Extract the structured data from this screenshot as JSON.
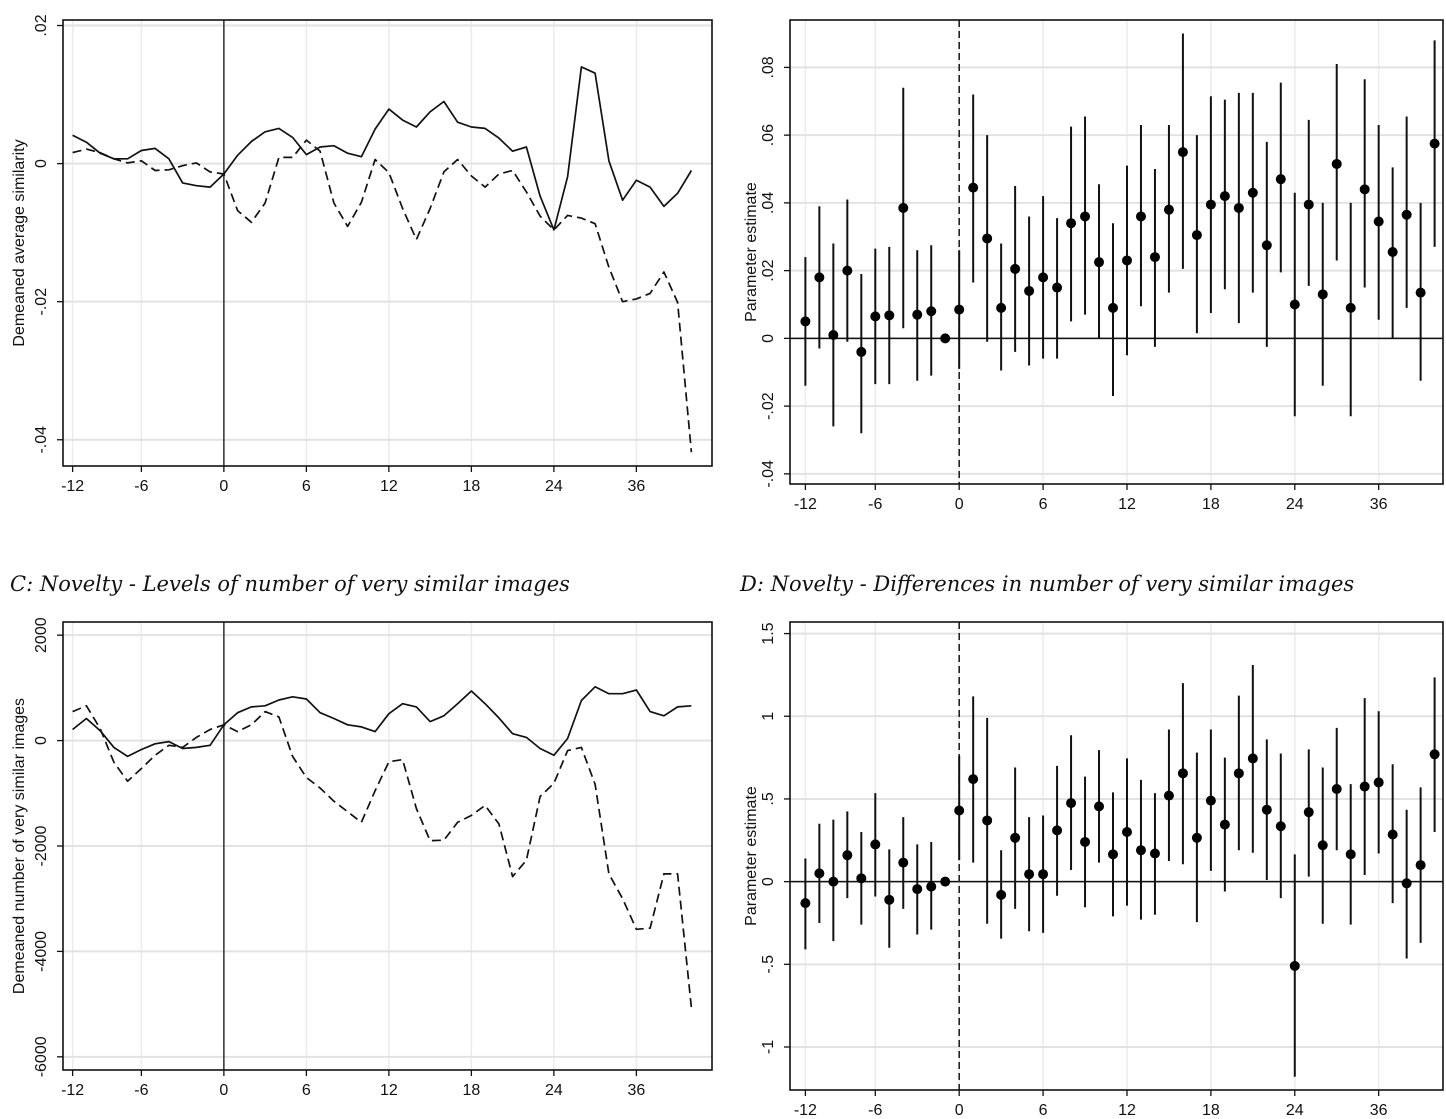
{
  "titles": {
    "c": "C: Novelty - Levels of number of very similar images",
    "d": "D: Novelty - Differences in number of very similar images"
  },
  "chart_data": [
    {
      "id": "A",
      "type": "line",
      "title": "",
      "xlabel": "",
      "ylabel": "Demeaned average similarity",
      "xlim": [
        -11.7,
        35.5
      ],
      "ylim": [
        -0.0438,
        0.0208
      ],
      "grid": true,
      "legend": "none",
      "x_ticks": [
        -11,
        -6,
        0,
        6,
        12,
        18,
        24,
        30
      ],
      "x_tick_labels": [
        "-12",
        "-6",
        "0",
        "6",
        "12",
        "18",
        "24",
        "36"
      ],
      "y_ticks": [
        0.02,
        0,
        -0.02,
        -0.04
      ],
      "y_tick_labels": [
        ".02",
        "0",
        "-.02",
        "-.04"
      ],
      "reference_line_x": 0,
      "x": [
        -11,
        -10,
        -9,
        -8,
        -7,
        -6,
        -5,
        -4,
        -3,
        -2,
        -1,
        0,
        1,
        2,
        3,
        4,
        5,
        6,
        7,
        8,
        9,
        10,
        11,
        12,
        13,
        14,
        15,
        16,
        17,
        18,
        19,
        20,
        21,
        22,
        23,
        24,
        25,
        26,
        27,
        28,
        29,
        30,
        31,
        32,
        33,
        34
      ],
      "series": [
        {
          "name": "solid",
          "style": "solid",
          "values": [
            0.0041,
            0.0031,
            0.0015,
            0.0007,
            0.0007,
            0.0019,
            0.0022,
            0.0007,
            -0.0028,
            -0.0032,
            -0.0034,
            -0.0015,
            0.0012,
            0.0032,
            0.0046,
            0.0051,
            0.0038,
            0.0013,
            0.0024,
            0.0026,
            0.0015,
            0.001,
            0.005,
            0.0079,
            0.0063,
            0.0053,
            0.0075,
            0.009,
            0.006,
            0.0053,
            0.0051,
            0.0037,
            0.0018,
            0.0024,
            -0.0047,
            -0.0096,
            -0.0019,
            0.014,
            0.0131,
            0.0004,
            -0.0053,
            -0.0024,
            -0.0034,
            -0.0062,
            -0.0043,
            -0.001
          ]
        },
        {
          "name": "dashed",
          "style": "dashed",
          "values": [
            0.0016,
            0.0021,
            0.0016,
            0.0007,
            0.0001,
            0.0004,
            -0.001,
            -0.0009,
            -0.0003,
            0.0001,
            -0.0012,
            -0.0015,
            -0.0068,
            -0.0085,
            -0.0057,
            0.0009,
            0.0009,
            0.0034,
            0.0018,
            -0.0057,
            -0.0091,
            -0.0056,
            0.0006,
            -0.0013,
            -0.0065,
            -0.011,
            -0.0065,
            -0.0012,
            0.0006,
            -0.0018,
            -0.0034,
            -0.0015,
            -0.001,
            -0.0041,
            -0.0076,
            -0.0096,
            -0.0075,
            -0.0079,
            -0.0087,
            -0.015,
            -0.02,
            -0.0196,
            -0.0188,
            -0.0157,
            -0.0201,
            -0.0418
          ]
        }
      ]
    },
    {
      "id": "B",
      "type": "scatter",
      "title": "",
      "xlabel": "",
      "ylabel": "Parameter estimate",
      "xlim": [
        -12.1,
        34.6
      ],
      "ylim": [
        -0.043,
        0.094
      ],
      "grid": true,
      "legend": "none",
      "x_ticks": [
        -11,
        -6,
        0,
        6,
        12,
        18,
        24,
        30
      ],
      "x_tick_labels": [
        "-12",
        "-6",
        "0",
        "6",
        "12",
        "18",
        "24",
        "36"
      ],
      "y_ticks": [
        0.08,
        0.06,
        0.04,
        0.02,
        0,
        -0.02,
        -0.04
      ],
      "y_tick_labels": [
        ".08",
        ".06",
        ".04",
        ".02",
        "0",
        "-.02",
        "-.04"
      ],
      "reference_line_x": 0,
      "reference_line_y": 0,
      "x": [
        -11,
        -10,
        -9,
        -8,
        -7,
        -6,
        -5,
        -4,
        -3,
        -2,
        -1,
        0,
        1,
        2,
        3,
        4,
        5,
        6,
        7,
        8,
        9,
        10,
        11,
        12,
        13,
        14,
        15,
        16,
        17,
        18,
        19,
        20,
        21,
        22,
        23,
        24,
        25,
        26,
        27,
        28,
        29,
        30,
        31,
        32,
        33,
        34
      ],
      "estimate": [
        0.005,
        0.018,
        0.001,
        0.02,
        -0.004,
        0.0065,
        0.0068,
        0.0385,
        0.007,
        0.008,
        0,
        0.0085,
        0.0445,
        0.0295,
        0.009,
        0.0205,
        0.014,
        0.018,
        0.015,
        0.034,
        0.036,
        0.0225,
        0.009,
        0.023,
        0.036,
        0.024,
        0.038,
        0.055,
        0.0305,
        0.0395,
        0.042,
        0.0385,
        0.043,
        0.0275,
        0.047,
        0.01,
        0.0395,
        0.013,
        0.0515,
        0.009,
        0.044,
        0.0345,
        0.0255,
        0.0365,
        0.0135,
        0.0575
      ],
      "ci_low": [
        -0.014,
        -0.003,
        -0.026,
        -0.001,
        -0.028,
        -0.0135,
        -0.0135,
        0.003,
        -0.0125,
        -0.011,
        0,
        -0.009,
        0.0165,
        -0.001,
        -0.0095,
        -0.004,
        -0.008,
        -0.006,
        -0.006,
        0.005,
        0.007,
        0,
        -0.017,
        -0.005,
        0.0095,
        -0.0025,
        0.0135,
        0.0205,
        0.0015,
        0.0075,
        0.0145,
        0.0045,
        0.0135,
        -0.0025,
        0.0195,
        -0.023,
        0.0155,
        -0.014,
        0.023,
        -0.023,
        0.015,
        0.0055,
        0,
        0.009,
        -0.0125,
        0.027
      ],
      "ci_high": [
        0.024,
        0.039,
        0.028,
        0.041,
        0.019,
        0.0265,
        0.027,
        0.074,
        0.026,
        0.0275,
        0,
        0.026,
        0.072,
        0.06,
        0.028,
        0.045,
        0.036,
        0.042,
        0.0355,
        0.0625,
        0.0655,
        0.0455,
        0.034,
        0.051,
        0.063,
        0.05,
        0.063,
        0.09,
        0.06,
        0.0715,
        0.0705,
        0.0725,
        0.0725,
        0.058,
        0.0755,
        0.043,
        0.0645,
        0.04,
        0.081,
        0.04,
        0.0765,
        0.063,
        0.0505,
        0.0655,
        0.04,
        0.088
      ]
    },
    {
      "id": "C",
      "type": "line",
      "title": "C: Novelty - Levels of number of very similar images",
      "xlabel": "",
      "ylabel": "Demeaned number of very similar images",
      "xlim": [
        -11.7,
        35.5
      ],
      "ylim": [
        -6250,
        2250
      ],
      "grid": true,
      "legend": "none",
      "x_ticks": [
        -11,
        -6,
        0,
        6,
        12,
        18,
        24,
        30
      ],
      "x_tick_labels": [
        "-12",
        "-6",
        "0",
        "6",
        "12",
        "18",
        "24",
        "36"
      ],
      "y_ticks": [
        2000,
        0,
        -2000,
        -4000,
        -6000
      ],
      "y_tick_labels": [
        "2000",
        "0",
        "-2000",
        "-4000",
        "-6000"
      ],
      "reference_line_x": 0,
      "x": [
        -11,
        -10,
        -9,
        -8,
        -7,
        -6,
        -5,
        -4,
        -3,
        -2,
        -1,
        0,
        1,
        2,
        3,
        4,
        5,
        6,
        7,
        8,
        9,
        10,
        11,
        12,
        13,
        14,
        15,
        16,
        17,
        18,
        19,
        20,
        21,
        22,
        23,
        24,
        25,
        26,
        27,
        28,
        29,
        30,
        31,
        32,
        33,
        34
      ],
      "series": [
        {
          "name": "solid",
          "style": "solid",
          "values": [
            210,
            420,
            190,
            -130,
            -300,
            -170,
            -60,
            -20,
            -150,
            -130,
            -90,
            300,
            530,
            640,
            660,
            770,
            830,
            790,
            530,
            420,
            300,
            260,
            170,
            510,
            700,
            640,
            360,
            470,
            700,
            940,
            700,
            430,
            130,
            60,
            -150,
            -280,
            40,
            760,
            1020,
            890,
            890,
            960,
            550,
            470,
            640,
            660
          ]
        },
        {
          "name": "dashed",
          "style": "dashed",
          "values": [
            550,
            660,
            230,
            -410,
            -770,
            -530,
            -280,
            -90,
            -130,
            60,
            210,
            300,
            170,
            300,
            550,
            450,
            -300,
            -700,
            -900,
            -1150,
            -1350,
            -1550,
            -950,
            -400,
            -360,
            -1290,
            -1900,
            -1890,
            -1550,
            -1420,
            -1230,
            -1580,
            -2580,
            -2270,
            -1060,
            -810,
            -190,
            -130,
            -830,
            -2530,
            -3000,
            -3580,
            -3560,
            -2530,
            -2530,
            -5070
          ]
        }
      ]
    },
    {
      "id": "D",
      "type": "scatter",
      "title": "D: Novelty - Differences in number of very similar images",
      "xlabel": "",
      "ylabel": "Parameter estimate",
      "xlim": [
        -12.1,
        34.6
      ],
      "ylim": [
        -1.26,
        1.57
      ],
      "grid": true,
      "legend": "none",
      "x_ticks": [
        -11,
        -6,
        0,
        6,
        12,
        18,
        24,
        30
      ],
      "x_tick_labels": [
        "-12",
        "-6",
        "0",
        "6",
        "12",
        "18",
        "24",
        "36"
      ],
      "y_ticks": [
        1.5,
        1,
        0.5,
        0,
        -0.5,
        -1
      ],
      "y_tick_labels": [
        "1.5",
        "1",
        ".5",
        "0",
        "-.5",
        "-1"
      ],
      "reference_line_x": 0,
      "reference_line_y": 0,
      "x": [
        -11,
        -10,
        -9,
        -8,
        -7,
        -6,
        -5,
        -4,
        -3,
        -2,
        -1,
        0,
        1,
        2,
        3,
        4,
        5,
        6,
        7,
        8,
        9,
        10,
        11,
        12,
        13,
        14,
        15,
        16,
        17,
        18,
        19,
        20,
        21,
        22,
        23,
        24,
        25,
        26,
        27,
        28,
        29,
        30,
        31,
        32,
        33,
        34
      ],
      "estimate": [
        -0.13,
        0.05,
        0,
        0.16,
        0.02,
        0.225,
        -0.11,
        0.115,
        -0.045,
        -0.03,
        0,
        0.43,
        0.62,
        0.37,
        -0.08,
        0.265,
        0.045,
        0.045,
        0.31,
        0.475,
        0.24,
        0.455,
        0.165,
        0.3,
        0.19,
        0.17,
        0.52,
        0.655,
        0.265,
        0.49,
        0.345,
        0.655,
        0.745,
        0.435,
        0.335,
        -0.51,
        0.42,
        0.22,
        0.56,
        0.165,
        0.575,
        0.6,
        0.285,
        -0.01,
        0.1,
        0.77
      ],
      "ci_low": [
        -0.41,
        -0.25,
        -0.36,
        -0.1,
        -0.26,
        -0.09,
        -0.4,
        -0.165,
        -0.32,
        -0.29,
        0,
        0.13,
        0.115,
        -0.255,
        -0.345,
        -0.165,
        -0.3,
        -0.31,
        -0.085,
        0.07,
        -0.155,
        0.115,
        -0.21,
        -0.145,
        -0.23,
        -0.2,
        0.125,
        0.105,
        -0.245,
        0.065,
        -0.06,
        0.19,
        0.175,
        0.01,
        -0.1,
        -1.18,
        0.03,
        -0.255,
        0.19,
        -0.26,
        0.04,
        0.17,
        -0.13,
        -0.465,
        -0.37,
        0.3
      ],
      "ci_high": [
        0.14,
        0.35,
        0.375,
        0.425,
        0.3,
        0.535,
        0.195,
        0.39,
        0.225,
        0.24,
        0,
        0.76,
        1.12,
        0.99,
        0.19,
        0.69,
        0.39,
        0.4,
        0.7,
        0.885,
        0.635,
        0.795,
        0.54,
        0.745,
        0.615,
        0.535,
        0.92,
        1.2,
        0.78,
        0.92,
        0.75,
        1.125,
        1.31,
        0.86,
        0.775,
        0.165,
        0.8,
        0.69,
        0.93,
        0.59,
        1.11,
        1.03,
        0.71,
        0.435,
        0.57,
        1.235
      ]
    }
  ]
}
